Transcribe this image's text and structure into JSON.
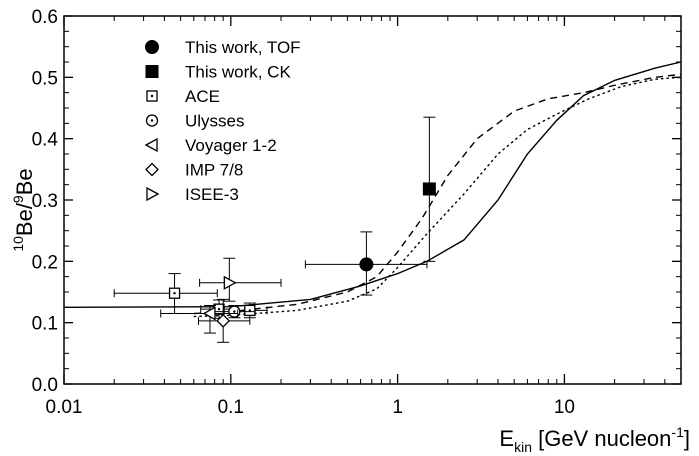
{
  "chart_data": {
    "type": "scatter",
    "title": "",
    "xlabel": {
      "main": "E",
      "sub": "kin",
      "unit_pre": " [GeV nucleon",
      "unit_sup": "-1",
      "unit_post": "]"
    },
    "ylabel": {
      "sup": "10",
      "mid": "Be/",
      "sup2": "9",
      "tail": "Be"
    },
    "x_scale": "log",
    "xlim": [
      0.01,
      50
    ],
    "ylim": [
      0.0,
      0.6
    ],
    "x_ticks": [
      {
        "value": 0.01,
        "label": "0.01"
      },
      {
        "value": 0.1,
        "label": "0.1"
      },
      {
        "value": 1,
        "label": "1"
      },
      {
        "value": 10,
        "label": "10"
      }
    ],
    "y_ticks": [
      {
        "value": 0.0,
        "label": "0.0"
      },
      {
        "value": 0.1,
        "label": "0.1"
      },
      {
        "value": 0.2,
        "label": "0.2"
      },
      {
        "value": 0.3,
        "label": "0.3"
      },
      {
        "value": 0.4,
        "label": "0.4"
      },
      {
        "value": 0.5,
        "label": "0.5"
      },
      {
        "value": 0.6,
        "label": "0.6"
      }
    ],
    "grid": false,
    "legend_position": "top-left",
    "legend": [
      {
        "label": "This work, TOF",
        "marker": "circle-filled"
      },
      {
        "label": "This work, CK",
        "marker": "square-filled"
      },
      {
        "label": "ACE",
        "marker": "square-dot"
      },
      {
        "label": "Ulysses",
        "marker": "circle-dot"
      },
      {
        "label": "Voyager 1-2",
        "marker": "triangle-left"
      },
      {
        "label": "IMP 7/8",
        "marker": "diamond"
      },
      {
        "label": "ISEE-3",
        "marker": "triangle-right"
      }
    ],
    "series": [
      {
        "marker": "circle-filled",
        "points": [
          {
            "x": 0.65,
            "y": 0.195,
            "xerr": [
              0.28,
              1.5
            ],
            "yerr": [
              0.145,
              0.248
            ]
          }
        ]
      },
      {
        "marker": "square-filled",
        "points": [
          {
            "x": 1.55,
            "y": 0.318,
            "xerr": null,
            "yerr": [
              0.2,
              0.435
            ]
          }
        ]
      },
      {
        "marker": "square-dot",
        "points": [
          {
            "x": 0.046,
            "y": 0.148,
            "xerr": [
              0.02,
              0.083
            ],
            "yerr": [
              0.115,
              0.18
            ]
          },
          {
            "x": 0.085,
            "y": 0.122,
            "xerr": [
              0.066,
              0.109
            ],
            "yerr": [
              0.107,
              0.137
            ]
          },
          {
            "x": 0.13,
            "y": 0.12,
            "xerr": [
              0.102,
              0.165
            ],
            "yerr": [
              0.108,
              0.132
            ]
          }
        ]
      },
      {
        "marker": "circle-dot",
        "points": [
          {
            "x": 0.105,
            "y": 0.118,
            "xerr": [
              0.08,
              0.14
            ],
            "yerr": [
              0.108,
              0.128
            ]
          }
        ]
      },
      {
        "marker": "triangle-left",
        "points": [
          {
            "x": 0.075,
            "y": 0.115,
            "xerr": [
              0.038,
              0.11
            ],
            "yerr": [
              0.083,
              0.128
            ]
          }
        ]
      },
      {
        "marker": "diamond",
        "points": [
          {
            "x": 0.09,
            "y": 0.103,
            "xerr": [
              0.064,
              0.13
            ],
            "yerr": [
              0.068,
              0.138
            ]
          }
        ]
      },
      {
        "marker": "triangle-right",
        "points": [
          {
            "x": 0.098,
            "y": 0.165,
            "xerr": [
              0.065,
              0.2
            ],
            "yerr": [
              0.135,
              0.205
            ]
          }
        ]
      }
    ],
    "curves": [
      {
        "style": "solid",
        "points": [
          [
            0.01,
            0.125
          ],
          [
            0.1,
            0.126
          ],
          [
            0.3,
            0.138
          ],
          [
            0.6,
            0.16
          ],
          [
            1.0,
            0.18
          ],
          [
            1.5,
            0.2
          ],
          [
            2.5,
            0.235
          ],
          [
            4,
            0.3
          ],
          [
            6,
            0.375
          ],
          [
            9,
            0.43
          ],
          [
            13,
            0.47
          ],
          [
            20,
            0.495
          ],
          [
            35,
            0.515
          ],
          [
            50,
            0.525
          ]
        ]
      },
      {
        "style": "dashed",
        "points": [
          [
            0.06,
            0.115
          ],
          [
            0.1,
            0.118
          ],
          [
            0.25,
            0.13
          ],
          [
            0.5,
            0.15
          ],
          [
            0.75,
            0.175
          ],
          [
            1.0,
            0.215
          ],
          [
            1.4,
            0.27
          ],
          [
            2,
            0.34
          ],
          [
            3,
            0.4
          ],
          [
            5,
            0.445
          ],
          [
            8,
            0.465
          ],
          [
            13,
            0.475
          ],
          [
            20,
            0.487
          ],
          [
            35,
            0.5
          ],
          [
            50,
            0.505
          ]
        ]
      },
      {
        "style": "dotted",
        "points": [
          [
            0.06,
            0.11
          ],
          [
            0.1,
            0.112
          ],
          [
            0.25,
            0.12
          ],
          [
            0.5,
            0.135
          ],
          [
            0.75,
            0.155
          ],
          [
            1.0,
            0.19
          ],
          [
            1.5,
            0.245
          ],
          [
            2.5,
            0.31
          ],
          [
            4,
            0.375
          ],
          [
            6,
            0.415
          ],
          [
            9,
            0.44
          ],
          [
            14,
            0.465
          ],
          [
            22,
            0.485
          ],
          [
            35,
            0.497
          ],
          [
            50,
            0.5
          ]
        ]
      }
    ]
  }
}
